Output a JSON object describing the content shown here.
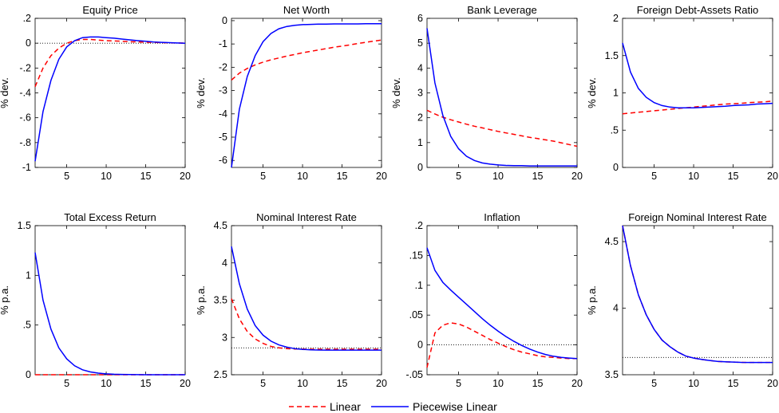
{
  "legend": {
    "linear_label": "Linear",
    "piecewise_label": "Piecewise Linear",
    "linear_color": "#ff0000",
    "piecewise_color": "#0000ff",
    "steady_state_color": "#000000"
  },
  "chart_data": [
    {
      "type": "line",
      "title": "Equity Price",
      "ylabel": "% dev.",
      "xlim": [
        1,
        20
      ],
      "ylim": [
        -1,
        0.2
      ],
      "xticks": [
        5,
        10,
        15,
        20
      ],
      "yticks": [
        -1,
        -0.8,
        -0.6,
        -0.4,
        -0.2,
        0,
        0.2
      ],
      "steady_state": 0,
      "x": [
        1,
        2,
        3,
        4,
        5,
        6,
        7,
        8,
        9,
        10,
        11,
        12,
        13,
        14,
        15,
        16,
        17,
        18,
        19,
        20
      ],
      "series": [
        {
          "name": "Linear",
          "values": [
            -0.35,
            -0.2,
            -0.1,
            -0.04,
            0.0,
            0.02,
            0.03,
            0.03,
            0.025,
            0.02,
            0.018,
            0.015,
            0.012,
            0.01,
            0.008,
            0.006,
            0.004,
            0.003,
            0.002,
            0.001
          ]
        },
        {
          "name": "Piecewise Linear",
          "values": [
            -0.95,
            -0.55,
            -0.3,
            -0.13,
            -0.03,
            0.02,
            0.045,
            0.05,
            0.05,
            0.045,
            0.04,
            0.033,
            0.027,
            0.02,
            0.015,
            0.01,
            0.007,
            0.004,
            0.002,
            0.0
          ]
        }
      ]
    },
    {
      "type": "line",
      "title": "Net Worth",
      "ylabel": "% dev.",
      "xlim": [
        1,
        20
      ],
      "ylim": [
        -6.3,
        0.1
      ],
      "xticks": [
        5,
        10,
        15,
        20
      ],
      "yticks": [
        -6,
        -5,
        -4,
        -3,
        -2,
        -1,
        0
      ],
      "steady_state": null,
      "x": [
        1,
        2,
        3,
        4,
        5,
        6,
        7,
        8,
        9,
        10,
        11,
        12,
        13,
        14,
        15,
        16,
        17,
        18,
        19,
        20
      ],
      "series": [
        {
          "name": "Linear",
          "values": [
            -2.55,
            -2.25,
            -2.05,
            -1.9,
            -1.78,
            -1.68,
            -1.6,
            -1.52,
            -1.45,
            -1.38,
            -1.32,
            -1.26,
            -1.2,
            -1.14,
            -1.09,
            -1.04,
            -0.98,
            -0.93,
            -0.88,
            -0.83
          ]
        },
        {
          "name": "Piecewise Linear",
          "values": [
            -6.3,
            -3.8,
            -2.4,
            -1.5,
            -0.9,
            -0.55,
            -0.35,
            -0.25,
            -0.2,
            -0.17,
            -0.16,
            -0.15,
            -0.15,
            -0.14,
            -0.14,
            -0.14,
            -0.14,
            -0.13,
            -0.13,
            -0.13
          ]
        }
      ]
    },
    {
      "type": "line",
      "title": "Bank Leverage",
      "ylabel": "% dev.",
      "xlim": [
        1,
        20
      ],
      "ylim": [
        0,
        6
      ],
      "xticks": [
        5,
        10,
        15,
        20
      ],
      "yticks": [
        0,
        1,
        2,
        3,
        4,
        5,
        6
      ],
      "steady_state": null,
      "x": [
        1,
        2,
        3,
        4,
        5,
        6,
        7,
        8,
        9,
        10,
        11,
        12,
        13,
        14,
        15,
        16,
        17,
        18,
        19,
        20
      ],
      "series": [
        {
          "name": "Linear",
          "values": [
            2.3,
            2.15,
            2.02,
            1.92,
            1.83,
            1.74,
            1.66,
            1.59,
            1.52,
            1.45,
            1.39,
            1.33,
            1.27,
            1.21,
            1.16,
            1.11,
            1.06,
            0.99,
            0.92,
            0.85
          ]
        },
        {
          "name": "Piecewise Linear",
          "values": [
            5.6,
            3.4,
            2.1,
            1.25,
            0.75,
            0.45,
            0.28,
            0.18,
            0.13,
            0.1,
            0.08,
            0.07,
            0.07,
            0.06,
            0.06,
            0.06,
            0.06,
            0.06,
            0.06,
            0.06
          ]
        }
      ]
    },
    {
      "type": "line",
      "title": "Foreign Debt-Assets Ratio",
      "ylabel": "% dev.",
      "xlim": [
        1,
        20
      ],
      "ylim": [
        0,
        2
      ],
      "xticks": [
        5,
        10,
        15,
        20
      ],
      "yticks": [
        0,
        0.5,
        1,
        1.5,
        2
      ],
      "steady_state": null,
      "x": [
        1,
        2,
        3,
        4,
        5,
        6,
        7,
        8,
        9,
        10,
        11,
        12,
        13,
        14,
        15,
        16,
        17,
        18,
        19,
        20
      ],
      "series": [
        {
          "name": "Linear",
          "values": [
            0.72,
            0.73,
            0.74,
            0.75,
            0.76,
            0.77,
            0.78,
            0.79,
            0.8,
            0.81,
            0.82,
            0.83,
            0.84,
            0.85,
            0.855,
            0.86,
            0.87,
            0.875,
            0.88,
            0.89
          ]
        },
        {
          "name": "Piecewise Linear",
          "values": [
            1.67,
            1.28,
            1.06,
            0.94,
            0.87,
            0.83,
            0.81,
            0.8,
            0.8,
            0.8,
            0.805,
            0.81,
            0.815,
            0.82,
            0.83,
            0.835,
            0.84,
            0.85,
            0.855,
            0.86
          ]
        }
      ]
    },
    {
      "type": "line",
      "title": "Total Excess Return",
      "ylabel": "% p.a.",
      "xlim": [
        1,
        20
      ],
      "ylim": [
        0,
        1.5
      ],
      "xticks": [
        5,
        10,
        15,
        20
      ],
      "yticks": [
        0,
        0.5,
        1,
        1.5
      ],
      "steady_state": 0,
      "x": [
        1,
        2,
        3,
        4,
        5,
        6,
        7,
        8,
        9,
        10,
        11,
        12,
        13,
        14,
        15,
        16,
        17,
        18,
        19,
        20
      ],
      "series": [
        {
          "name": "Linear",
          "values": [
            0,
            0,
            0,
            0,
            0,
            0,
            0,
            0,
            0,
            0,
            0,
            0,
            0,
            0,
            0,
            0,
            0,
            0,
            0,
            0
          ]
        },
        {
          "name": "Piecewise Linear",
          "values": [
            1.23,
            0.75,
            0.46,
            0.27,
            0.16,
            0.09,
            0.05,
            0.028,
            0.016,
            0.009,
            0.005,
            0.003,
            0.002,
            0.001,
            0,
            0,
            0,
            0,
            0,
            0
          ]
        }
      ]
    },
    {
      "type": "line",
      "title": "Nominal Interest Rate",
      "ylabel": "% p.a.",
      "xlim": [
        1,
        20
      ],
      "ylim": [
        2.5,
        4.5
      ],
      "xticks": [
        5,
        10,
        15,
        20
      ],
      "yticks": [
        2.5,
        3,
        3.5,
        4,
        4.5
      ],
      "steady_state": 2.86,
      "x": [
        1,
        2,
        3,
        4,
        5,
        6,
        7,
        8,
        9,
        10,
        11,
        12,
        13,
        14,
        15,
        16,
        17,
        18,
        19,
        20
      ],
      "series": [
        {
          "name": "Linear",
          "values": [
            3.52,
            3.25,
            3.08,
            2.98,
            2.92,
            2.88,
            2.86,
            2.85,
            2.845,
            2.843,
            2.842,
            2.842,
            2.842,
            2.842,
            2.842,
            2.842,
            2.842,
            2.842,
            2.842,
            2.842
          ]
        },
        {
          "name": "Piecewise Linear",
          "values": [
            4.22,
            3.72,
            3.38,
            3.16,
            3.03,
            2.95,
            2.9,
            2.87,
            2.85,
            2.84,
            2.835,
            2.832,
            2.83,
            2.83,
            2.83,
            2.83,
            2.83,
            2.83,
            2.83,
            2.83
          ]
        }
      ]
    },
    {
      "type": "line",
      "title": "Inflation",
      "ylabel": "",
      "xlim": [
        1,
        20
      ],
      "ylim": [
        -0.05,
        0.2
      ],
      "xticks": [
        5,
        10,
        15,
        20
      ],
      "yticks": [
        -0.05,
        0,
        0.05,
        0.1,
        0.15,
        0.2
      ],
      "steady_state": 0,
      "x": [
        1,
        2,
        3,
        4,
        5,
        6,
        7,
        8,
        9,
        10,
        11,
        12,
        13,
        14,
        15,
        16,
        17,
        18,
        19,
        20
      ],
      "series": [
        {
          "name": "Linear",
          "values": [
            -0.038,
            0.02,
            0.033,
            0.037,
            0.035,
            0.03,
            0.023,
            0.016,
            0.009,
            0.003,
            -0.003,
            -0.008,
            -0.012,
            -0.015,
            -0.018,
            -0.02,
            -0.021,
            -0.022,
            -0.023,
            -0.023
          ]
        },
        {
          "name": "Piecewise Linear",
          "values": [
            0.163,
            0.125,
            0.105,
            0.092,
            0.08,
            0.068,
            0.056,
            0.044,
            0.033,
            0.023,
            0.014,
            0.006,
            -0.001,
            -0.007,
            -0.012,
            -0.016,
            -0.019,
            -0.021,
            -0.022,
            -0.023
          ]
        }
      ]
    },
    {
      "type": "line",
      "title": "Foreign Nominal Interest Rate",
      "ylabel": "% p.a.",
      "xlim": [
        1,
        20
      ],
      "ylim": [
        3.5,
        4.62
      ],
      "xticks": [
        5,
        10,
        15,
        20
      ],
      "yticks": [
        3.5,
        4,
        4.5
      ],
      "steady_state": 3.63,
      "x": [
        1,
        2,
        3,
        4,
        5,
        6,
        7,
        8,
        9,
        10,
        11,
        12,
        13,
        14,
        15,
        16,
        17,
        18,
        19,
        20
      ],
      "series": [
        {
          "name": "Linear",
          "values": [
            4.62,
            4.32,
            4.1,
            3.95,
            3.84,
            3.76,
            3.71,
            3.67,
            3.64,
            3.625,
            3.615,
            3.607,
            3.6,
            3.597,
            3.595,
            3.593,
            3.592,
            3.592,
            3.592,
            3.592
          ]
        },
        {
          "name": "Piecewise Linear",
          "values": [
            4.62,
            4.32,
            4.1,
            3.95,
            3.84,
            3.76,
            3.71,
            3.67,
            3.64,
            3.625,
            3.615,
            3.607,
            3.6,
            3.597,
            3.595,
            3.593,
            3.592,
            3.592,
            3.592,
            3.592
          ]
        }
      ]
    }
  ]
}
